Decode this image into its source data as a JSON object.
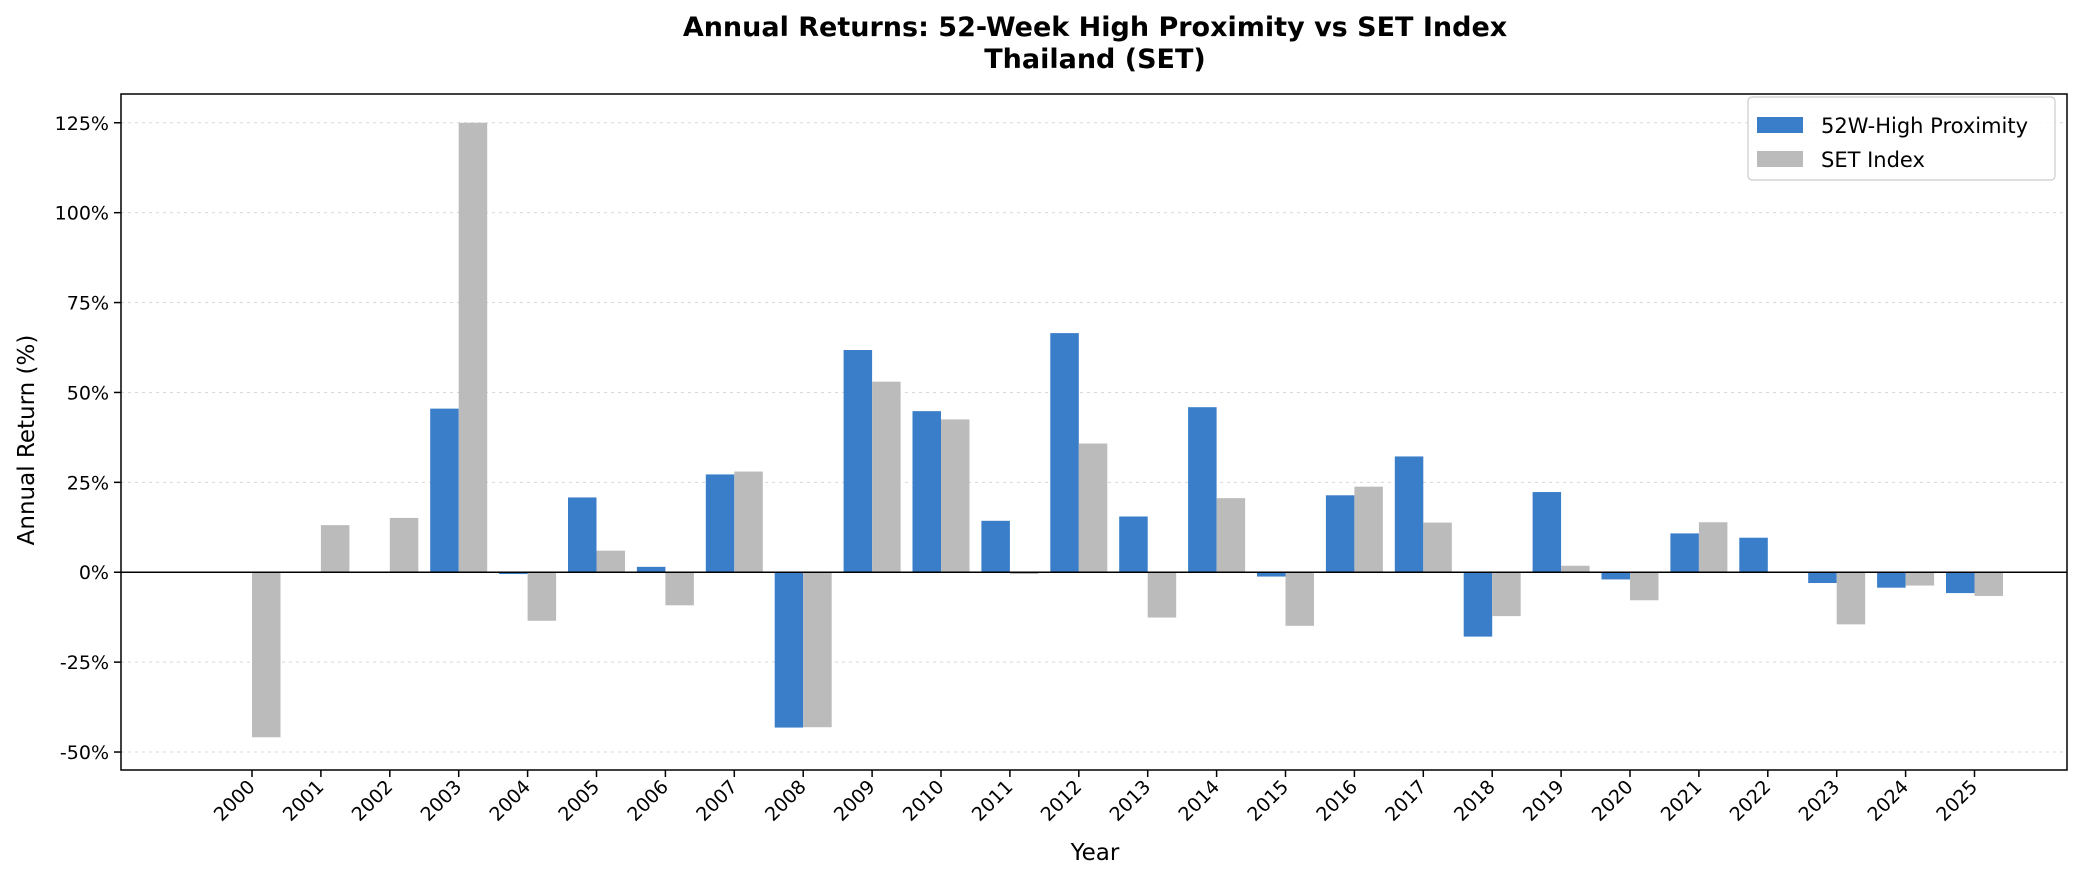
{
  "chart_data": {
    "type": "bar",
    "title": "Annual Returns: 52-Week High Proximity vs SET Index",
    "subtitle": "Thailand (SET)",
    "xlabel": "Year",
    "ylabel": "Annual Return (%)",
    "ylim": [
      -55,
      133
    ],
    "yticks": [
      -50,
      -25,
      0,
      25,
      50,
      75,
      100,
      125
    ],
    "ytick_labels": [
      "-50%",
      "-25%",
      "0%",
      "25%",
      "50%",
      "75%",
      "100%",
      "125%"
    ],
    "grid": true,
    "legend_position": "top-right",
    "categories": [
      "2000",
      "2001",
      "2002",
      "2003",
      "2004",
      "2005",
      "2006",
      "2007",
      "2008",
      "2009",
      "2010",
      "2011",
      "2012",
      "2013",
      "2014",
      "2015",
      "2016",
      "2017",
      "2018",
      "2019",
      "2020",
      "2021",
      "2022",
      "2023",
      "2024",
      "2025"
    ],
    "series": [
      {
        "name": "52W-High Proximity",
        "color": "#3a7dc9",
        "values": [
          null,
          null,
          null,
          45.5,
          -0.5,
          20.8,
          1.5,
          27.2,
          -43.2,
          61.8,
          44.8,
          14.3,
          66.5,
          15.5,
          45.9,
          -1.2,
          21.4,
          32.2,
          -17.9,
          22.3,
          -2.0,
          10.8,
          9.6,
          -3.0,
          -4.3,
          -5.8
        ]
      },
      {
        "name": "SET Index",
        "color": "#bbbbbb",
        "values": [
          -45.9,
          13.1,
          15.1,
          125.0,
          -13.5,
          6.0,
          -9.2,
          28.0,
          -43.1,
          53.0,
          42.5,
          -0.5,
          35.8,
          -12.6,
          20.6,
          -14.9,
          23.8,
          13.8,
          -12.2,
          1.8,
          -7.8,
          13.9,
          0.2,
          -14.5,
          -3.7,
          -6.6
        ]
      }
    ]
  }
}
